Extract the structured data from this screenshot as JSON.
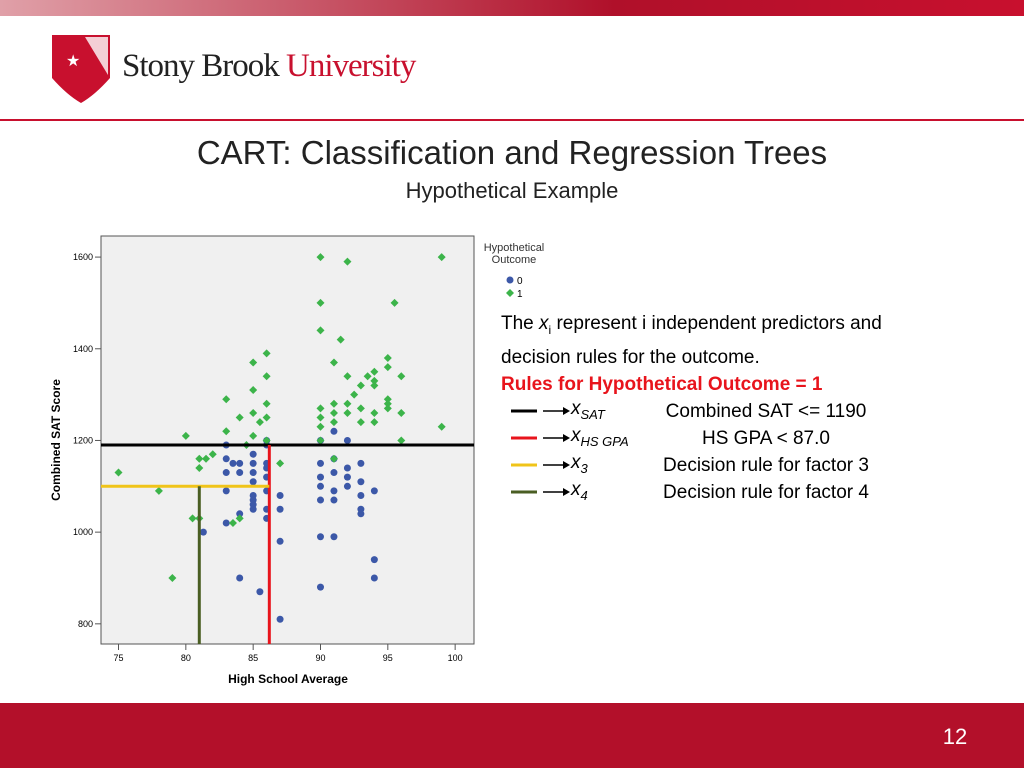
{
  "header": {
    "brand_main": "Stony Brook",
    "brand_accent": "University"
  },
  "slide": {
    "title": "CART:  Classification and Regression Trees",
    "subtitle": "Hypothetical Example",
    "page_number": "12",
    "note_lead": "The",
    "note_var": "x",
    "note_sub": "i",
    "note_rest": "represent i independent predictors and decision rules for the outcome.",
    "rules_heading": "Rules for Hypothetical Outcome = 1",
    "rules": [
      {
        "symbol": "x",
        "subscript": "SAT",
        "text": "Combined SAT <= 1190",
        "color": "#000000"
      },
      {
        "symbol": "x",
        "subscript": "HS GPA",
        "text": "HS GPA < 87.0",
        "color": "#e8141c"
      },
      {
        "symbol": "x",
        "subscript": "3",
        "text": "Decision rule for factor 3",
        "color": "#f0c419"
      },
      {
        "symbol": "x",
        "subscript": "4",
        "text": "Decision rule for factor 4",
        "color": "#4a5e23"
      }
    ]
  },
  "chart_data": {
    "type": "scatter",
    "x_label": "High School Average",
    "y_label": "Combined SAT Score",
    "legend_title": "Hypothetical Outcome",
    "xlim": [
      73.7,
      101.4
    ],
    "ylim": [
      756,
      1646
    ],
    "xticks": [
      75,
      80,
      85,
      90,
      95,
      100
    ],
    "yticks": [
      800,
      1000,
      1200,
      1400,
      1600
    ],
    "series": [
      {
        "name": "0",
        "color": "#3c58a8",
        "marker": "circle",
        "x": [
          81.3,
          83,
          83,
          83,
          83,
          83,
          83.5,
          84,
          84,
          84,
          84,
          85,
          85,
          85,
          85,
          85,
          85,
          85,
          85,
          86,
          86,
          86,
          86,
          86,
          86,
          86,
          86,
          85.5,
          87,
          87,
          87,
          87,
          90,
          90,
          90,
          90,
          90,
          90,
          90,
          91,
          91,
          91,
          91,
          91,
          91,
          92,
          92,
          92,
          92,
          93,
          93,
          93,
          93,
          93,
          94,
          94,
          94
        ],
        "values": [
          1000,
          1190,
          1160,
          1130,
          1090,
          1020,
          1150,
          1150,
          1130,
          1040,
          900,
          1170,
          1150,
          1130,
          1110,
          1080,
          1070,
          1060,
          1050,
          1200,
          1190,
          1150,
          1140,
          1120,
          1090,
          1050,
          1030,
          870,
          1080,
          1050,
          980,
          810,
          1200,
          1150,
          1120,
          1100,
          1070,
          990,
          880,
          1220,
          1160,
          1130,
          1090,
          1070,
          990,
          1200,
          1140,
          1120,
          1100,
          1150,
          1110,
          1080,
          1050,
          1040,
          1090,
          940,
          900
        ]
      },
      {
        "name": "1",
        "color": "#3cb44a",
        "marker": "diamond",
        "x": [
          75,
          78,
          79,
          80,
          80.5,
          81,
          81,
          81.5,
          81,
          82,
          83,
          83,
          83.5,
          84,
          84,
          84.5,
          85,
          85,
          85,
          85,
          85.5,
          86,
          86,
          86,
          86,
          86,
          87,
          90,
          90,
          90,
          90,
          90,
          90,
          90,
          91,
          91,
          91,
          91,
          91,
          91.5,
          92,
          92,
          92,
          92,
          92.5,
          93,
          93,
          93,
          93.5,
          94,
          94,
          94,
          94,
          94,
          95,
          95,
          95,
          95,
          95,
          95.5,
          96,
          96,
          96,
          99,
          99
        ],
        "values": [
          1130,
          1090,
          900,
          1210,
          1030,
          1160,
          1140,
          1160,
          1030,
          1170,
          1290,
          1220,
          1020,
          1250,
          1030,
          1190,
          1370,
          1310,
          1260,
          1210,
          1240,
          1390,
          1340,
          1280,
          1250,
          1200,
          1150,
          1600,
          1500,
          1440,
          1270,
          1250,
          1230,
          1200,
          1370,
          1280,
          1260,
          1240,
          1160,
          1420,
          1590,
          1340,
          1280,
          1260,
          1300,
          1320,
          1270,
          1240,
          1340,
          1350,
          1330,
          1320,
          1260,
          1240,
          1380,
          1360,
          1290,
          1280,
          1270,
          1500,
          1340,
          1260,
          1200,
          1600,
          1230
        ]
      }
    ],
    "decision_lines": [
      {
        "color": "#000000",
        "x": [
          73.7,
          101.4
        ],
        "y": [
          1190,
          1190
        ]
      },
      {
        "color": "#e8141c",
        "x": [
          86.2,
          86.2
        ],
        "y": [
          1190,
          756
        ]
      },
      {
        "color": "#f0c419",
        "x": [
          73.7,
          86.2
        ],
        "y": [
          1100,
          1100
        ]
      },
      {
        "color": "#4a5e23",
        "x": [
          81,
          81
        ],
        "y": [
          1100,
          756
        ]
      }
    ]
  }
}
